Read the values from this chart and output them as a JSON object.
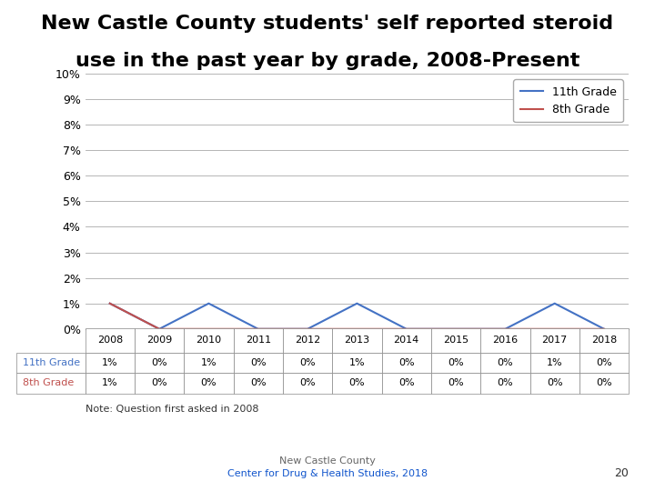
{
  "title_line1": "New Castle County students' self reported steroid",
  "title_line2": "use in the past year by grade, 2008-Present",
  "years": [
    2008,
    2009,
    2010,
    2011,
    2012,
    2013,
    2014,
    2015,
    2016,
    2017,
    2018
  ],
  "grade11": [
    0.01,
    0.0,
    0.01,
    0.0,
    0.0,
    0.01,
    0.0,
    0.0,
    0.0,
    0.01,
    0.0
  ],
  "grade8": [
    0.01,
    0.0,
    0.0,
    0.0,
    0.0,
    0.0,
    0.0,
    0.0,
    0.0,
    0.0,
    0.0
  ],
  "grade11_labels": [
    "1%",
    "0%",
    "1%",
    "0%",
    "0%",
    "1%",
    "0%",
    "0%",
    "0%",
    "1%",
    "0%"
  ],
  "grade8_labels": [
    "1%",
    "0%",
    "0%",
    "0%",
    "0%",
    "0%",
    "0%",
    "0%",
    "0%",
    "0%",
    "0%"
  ],
  "color_11": "#4472C4",
  "color_8": "#C0504D",
  "ylim": [
    0,
    0.1
  ],
  "yticks": [
    0.0,
    0.01,
    0.02,
    0.03,
    0.04,
    0.05,
    0.06,
    0.07,
    0.08,
    0.09,
    0.1
  ],
  "ytick_labels": [
    "0%",
    "1%",
    "2%",
    "3%",
    "4%",
    "5%",
    "6%",
    "7%",
    "8%",
    "9%",
    "10%"
  ],
  "note": "Note: Question first asked in 2008",
  "footer_line1": "New Castle County",
  "footer_line2": "Center for Drug & Health Studies, 2018",
  "page_number": "20",
  "legend_11": "11th Grade",
  "legend_8": "8th Grade",
  "background_color": "#FFFFFF",
  "grid_color": "#AAAAAA"
}
